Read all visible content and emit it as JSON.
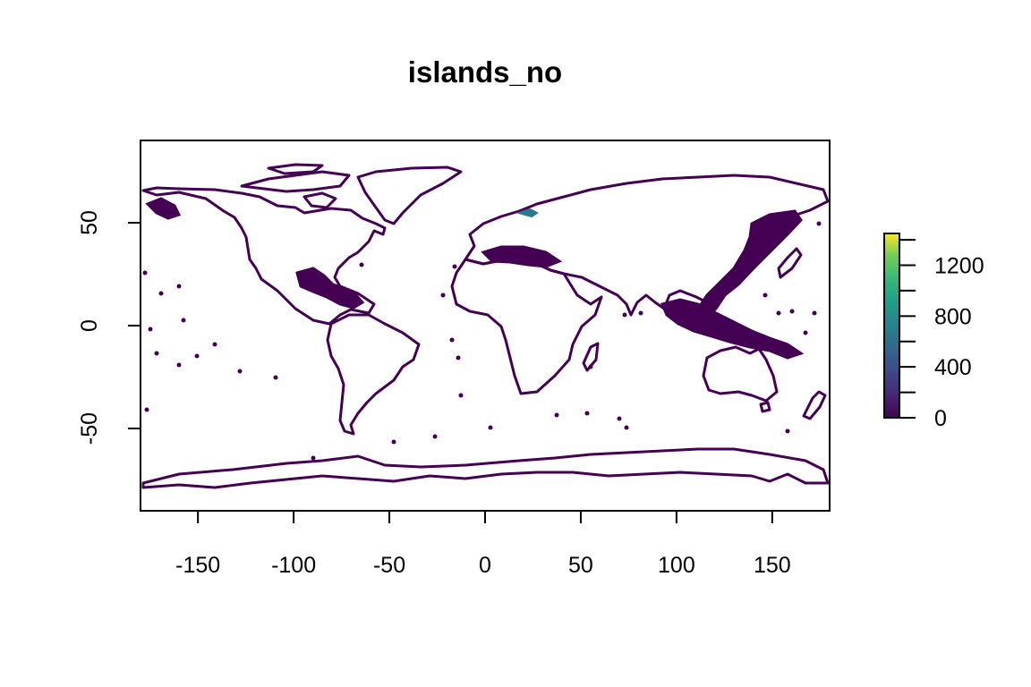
{
  "title": "islands_no",
  "colors": {
    "land": "#440154",
    "highlight": "#2a788e",
    "frame": "#000000",
    "background": "#ffffff",
    "palette": "viridis"
  },
  "chart_data": {
    "type": "raster-map",
    "title": "islands_no",
    "xlabel": "",
    "ylabel": "",
    "xlim": [
      -180,
      180
    ],
    "ylim": [
      -90,
      90
    ],
    "x_ticks": [
      -150,
      -100,
      -50,
      0,
      50,
      100,
      150
    ],
    "y_ticks": [
      -50,
      0,
      50
    ],
    "legend": {
      "position": "right",
      "min": 0,
      "max": 1450,
      "labels": [
        0,
        400,
        800,
        1200
      ],
      "minor_ticks": [
        200,
        600,
        1000,
        1400
      ],
      "palette": "viridis"
    },
    "grid": false
  }
}
